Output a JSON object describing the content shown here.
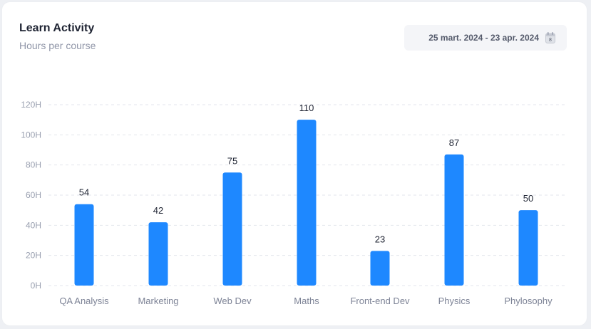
{
  "header": {
    "title": "Learn Activity",
    "subtitle": "Hours per course"
  },
  "date_range": {
    "label": "25 mart. 2024 - 23 apr. 2024",
    "icon": "calendar-icon",
    "icon_badge": "8"
  },
  "colors": {
    "bar": "#1e88ff",
    "grid": "#e3e6ec",
    "card": "#ffffff"
  },
  "chart_data": {
    "type": "bar",
    "title": "Learn Activity",
    "subtitle": "Hours per course",
    "categories": [
      "QA Analysis",
      "Marketing",
      "Web Dev",
      "Maths",
      "Front-end Dev",
      "Physics",
      "Phylosophy"
    ],
    "values": [
      54,
      42,
      75,
      110,
      23,
      87,
      50
    ],
    "y_ticks": [
      "0H",
      "20H",
      "40H",
      "60H",
      "80H",
      "100H",
      "120H"
    ],
    "ylim": [
      0,
      120
    ],
    "grid": true,
    "legend": "none"
  }
}
